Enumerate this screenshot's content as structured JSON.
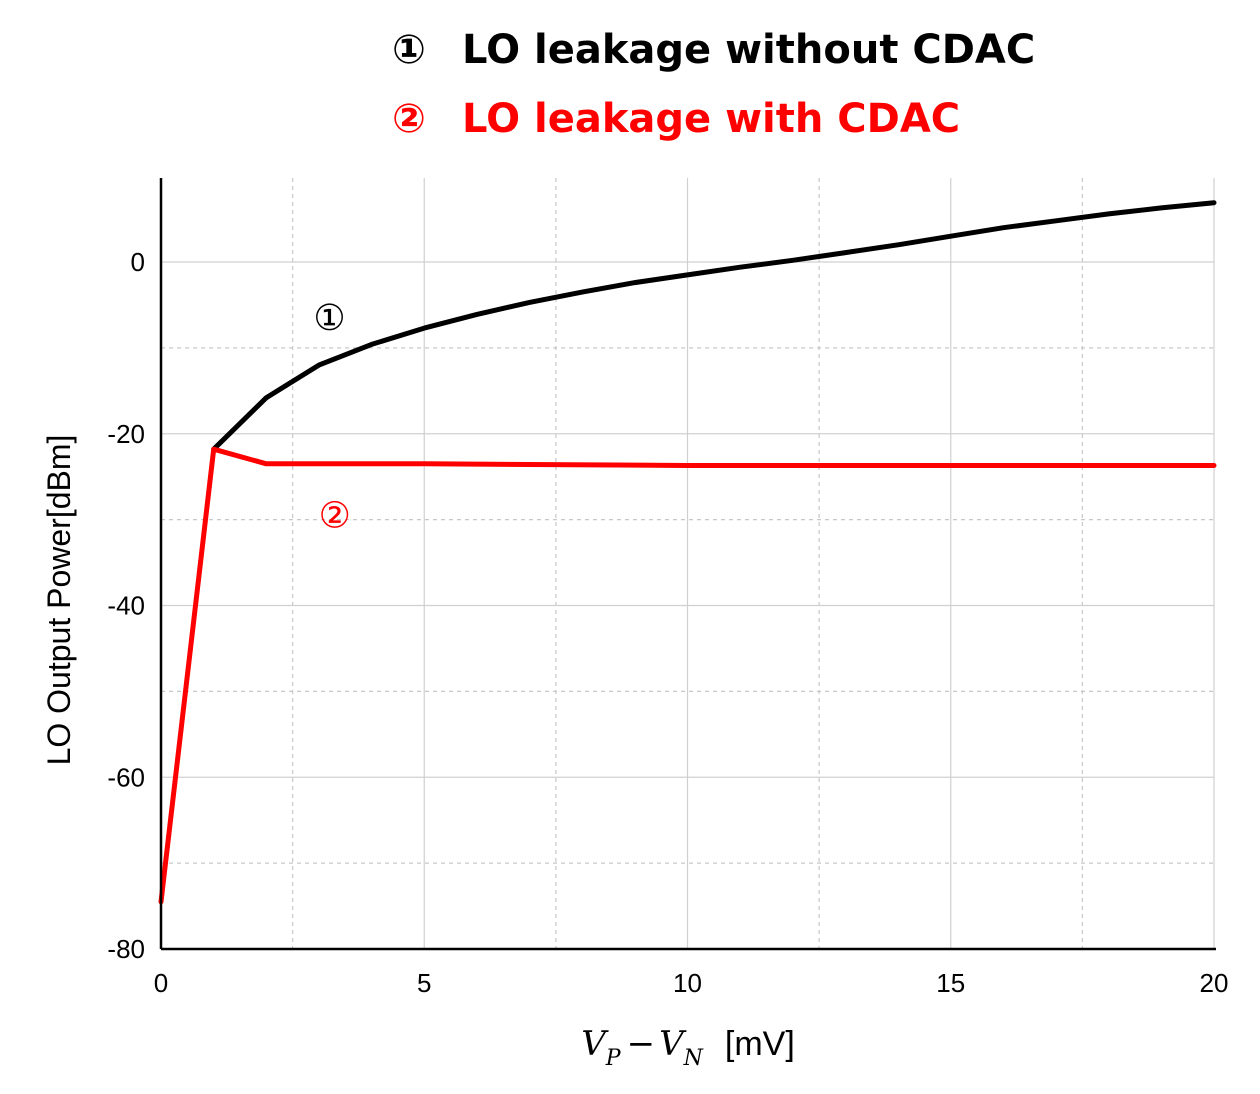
{
  "chart_data": {
    "type": "line",
    "title": "",
    "xlabel": "V_P − V_N  [mV]",
    "xlabel_parts": {
      "v1": "V",
      "s1": "P",
      "minus": "−",
      "v2": "V",
      "s2": "N",
      "unit": "[mV]"
    },
    "ylabel": "LO Output Power[dBm]",
    "xlim": [
      0,
      20
    ],
    "ylim": [
      -80,
      10
    ],
    "xticks": [
      0,
      5,
      10,
      15,
      20
    ],
    "xtick_labels": [
      "0",
      "5",
      "10",
      "15",
      "20"
    ],
    "yticks": [
      -80,
      -60,
      -40,
      -20,
      0
    ],
    "ytick_labels": [
      "-80",
      "-60",
      "-40",
      "-20",
      "0"
    ],
    "minor_x_grid": [
      2.5,
      7.5,
      12.5,
      17.5
    ],
    "minor_y_grid": [
      -70,
      -50,
      -30,
      -10
    ],
    "grid": true,
    "legend_position": "top-center",
    "series": [
      {
        "name": "LO leakage without CDAC",
        "legend_marker": "①",
        "color": "#000000",
        "x": [
          1,
          2,
          3,
          4,
          5,
          6,
          7,
          8,
          9,
          10,
          11,
          12,
          13,
          14,
          15,
          16,
          17,
          18,
          19,
          20
        ],
        "values": [
          -21.8,
          -15.8,
          -12.0,
          -9.6,
          -7.7,
          -6.1,
          -4.7,
          -3.5,
          -2.4,
          -1.5,
          -0.6,
          0.2,
          1.1,
          2.0,
          3.0,
          4.0,
          4.8,
          5.6,
          6.3,
          6.9
        ]
      },
      {
        "name": "LO leakage with CDAC",
        "legend_marker": "②",
        "color": "#ff0000",
        "x": [
          0,
          1,
          2,
          5,
          10,
          15,
          20
        ],
        "values": [
          -74.5,
          -21.8,
          -23.5,
          -23.5,
          -23.7,
          -23.7,
          -23.7
        ]
      }
    ],
    "annotations": [
      {
        "text": "①",
        "color": "#000000",
        "x": 3.2,
        "y": -6.5
      },
      {
        "text": "②",
        "color": "#ff0000",
        "x": 3.3,
        "y": -29.5
      }
    ]
  }
}
